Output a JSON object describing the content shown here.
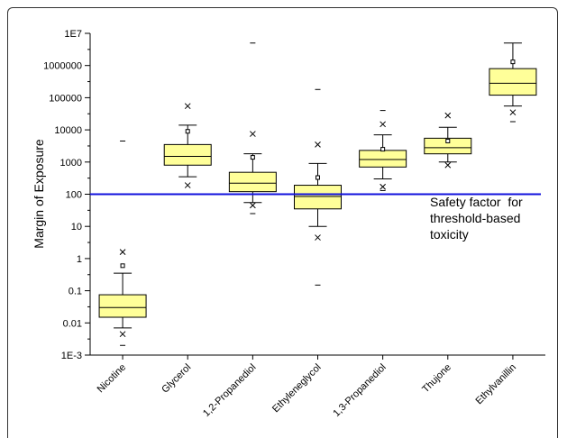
{
  "chart_data": {
    "type": "box",
    "title": "",
    "xlabel": "",
    "ylabel": "Margin of Exposure",
    "yscale": "log",
    "ylim": [
      0.001,
      10000000
    ],
    "yticks": [
      "1E-3",
      "0.01",
      "0.1",
      "1",
      "10",
      "100",
      "1000",
      "10000",
      "100000",
      "1000000",
      "1E7"
    ],
    "categories": [
      "Nicotine",
      "Glycerol",
      "1,2-Propanediol",
      "Ethyleneglycol",
      "1,3-Propanediol",
      "Thujone",
      "Ethylvanillin"
    ],
    "box_color": "#ffff99",
    "reference_line": {
      "value": 100,
      "color": "#1010dd",
      "label_lines": [
        "Safety factor  for",
        "threshold-based",
        "toxicity"
      ]
    },
    "boxes": [
      {
        "q1": 0.015,
        "median": 0.03,
        "q3": 0.075,
        "whisker_low": 0.007,
        "whisker_high": 0.35,
        "mean": 0.6,
        "p1": 0.0045,
        "p99": 1.6,
        "min": 0.002,
        "max": 4500
      },
      {
        "q1": 800,
        "median": 1500,
        "q3": 3500,
        "whisker_low": 350,
        "whisker_high": 14000,
        "mean": 9000,
        "p1": 190,
        "p99": 55000,
        "min": null,
        "max": null
      },
      {
        "q1": 120,
        "median": 220,
        "q3": 480,
        "whisker_low": 55,
        "whisker_high": 1800,
        "mean": 1400,
        "p1": 45,
        "p99": 7500,
        "min": 25,
        "max": 5000000
      },
      {
        "q1": 35,
        "median": 85,
        "q3": 190,
        "whisker_low": 10,
        "whisker_high": 900,
        "mean": 330,
        "p1": 4.5,
        "p99": 3500,
        "min": 0.15,
        "max": 180000
      },
      {
        "q1": 700,
        "median": 1200,
        "q3": 2300,
        "whisker_low": 300,
        "whisker_high": 7000,
        "mean": 2500,
        "p1": 170,
        "p99": 15000,
        "min": 130,
        "max": 40000
      },
      {
        "q1": 1800,
        "median": 2800,
        "q3": 5500,
        "whisker_low": 1000,
        "whisker_high": 12000,
        "mean": 4500,
        "p1": 800,
        "p99": 28000,
        "min": null,
        "max": null
      },
      {
        "q1": 120000,
        "median": 280000,
        "q3": 800000,
        "whisker_low": 55000,
        "whisker_high": 5000000,
        "mean": 1300000,
        "p1": 35000,
        "p99": null,
        "min": 18000,
        "max": null
      }
    ]
  }
}
